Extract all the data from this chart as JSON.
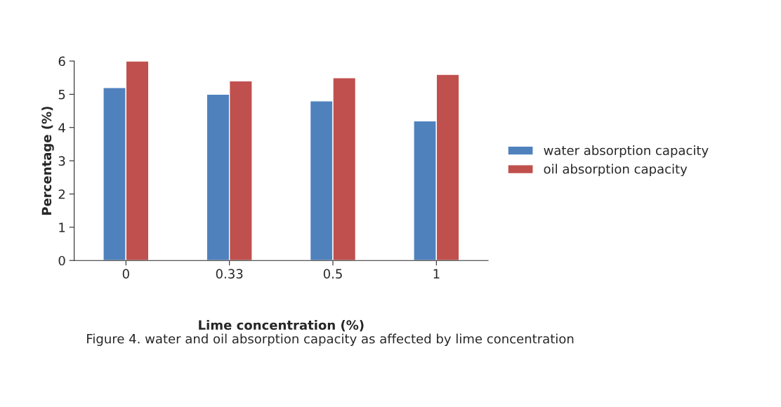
{
  "chart_data": {
    "type": "bar",
    "categories": [
      "0",
      "0.33",
      "0.5",
      "1"
    ],
    "series": [
      {
        "name": "water absorption capacity",
        "color": "#4f81bd",
        "values": [
          5.2,
          5.0,
          4.8,
          4.2
        ]
      },
      {
        "name": "oil absorption capacity",
        "color": "#c0504d",
        "values": [
          6.0,
          5.4,
          5.5,
          5.6
        ]
      }
    ],
    "xlabel": "Lime concentration (%)",
    "ylabel": "Percentage (%)",
    "ylim": [
      0,
      6
    ],
    "yticks": [
      0,
      1,
      2,
      3,
      4,
      5,
      6
    ],
    "grid": false,
    "legend": "right",
    "annotations": [
      "Figure 4. water and oil absorption capacity as affected by lime concentration"
    ]
  }
}
